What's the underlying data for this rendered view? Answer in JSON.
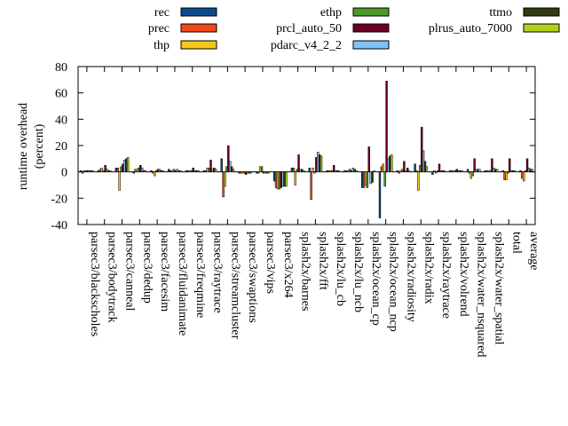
{
  "chart_data": {
    "type": "bar",
    "ylabel_lines": [
      "runtime overhead",
      "(percent)"
    ],
    "xlabel": "",
    "ylim": [
      -40,
      80
    ],
    "yticks": [
      -40,
      -20,
      0,
      20,
      40,
      60,
      80
    ],
    "grid": false,
    "legend_position": "top",
    "categories": [
      "parsec3/blackscholes",
      "parsec3/bodytrack",
      "parsec3/canneal",
      "parsec3/dedup",
      "parsec3/facesim",
      "parsec3/fluidanimate",
      "parsec3/freqmine",
      "parsec3/raytrace",
      "parsec3/streamcluster",
      "parsec3/swaptions",
      "parsec3/vips",
      "parsec3/x264",
      "splash2x/barnes",
      "splash2x/fft",
      "splash2x/lu_cb",
      "splash2x/lu_ncb",
      "splash2x/ocean_cp",
      "splash2x/ocean_ncp",
      "splash2x/radiosity",
      "splash2x/radix",
      "splash2x/raytrace",
      "splash2x/volrend",
      "splash2x/water_nsquared",
      "splash2x/water_spatial",
      "total",
      "average"
    ],
    "series": [
      {
        "name": "rec",
        "color": "#0b4a8b",
        "values": [
          1,
          1,
          3,
          -1,
          1,
          2,
          1,
          1,
          10,
          -1,
          -1,
          -7,
          3,
          3,
          1,
          1,
          -12,
          -35,
          1,
          6,
          -2,
          1,
          2,
          1,
          1,
          1
        ]
      },
      {
        "name": "prec",
        "color": "#f04a1a",
        "values": [
          -1,
          2,
          3,
          2,
          -1,
          1,
          1,
          1,
          -19,
          -1,
          -1,
          -12,
          3,
          -21,
          1,
          1,
          -12,
          4,
          -1,
          1,
          1,
          1,
          -1,
          1,
          -6,
          -5
        ]
      },
      {
        "name": "thp",
        "color": "#f4c71a",
        "values": [
          1,
          3,
          -14,
          2,
          -3,
          1,
          1,
          3,
          -11,
          -1,
          4,
          -13,
          -10,
          3,
          1,
          1,
          -10,
          6,
          1,
          -14,
          -1,
          1,
          -5,
          1,
          -6,
          -7
        ]
      },
      {
        "name": "ethp",
        "color": "#4d9a2a",
        "values": [
          1,
          1,
          4,
          3,
          1,
          2,
          1,
          3,
          4,
          -1,
          4,
          -13,
          2,
          -1,
          1,
          2,
          -12,
          -11,
          2,
          5,
          1,
          1,
          -3,
          1,
          -1,
          1
        ]
      },
      {
        "name": "prcl_auto_50",
        "color": "#6d0022",
        "values": [
          1,
          5,
          6,
          5,
          2,
          1,
          3,
          9,
          20,
          -2,
          -1,
          -12,
          13,
          11,
          5,
          1,
          19,
          69,
          8,
          34,
          6,
          2,
          10,
          10,
          10,
          10
        ]
      },
      {
        "name": "pdarc_v4_2_2",
        "color": "#7ec4f4",
        "values": [
          1,
          2,
          9,
          3,
          2,
          2,
          1,
          2,
          8,
          -1,
          -1,
          -11,
          2,
          15,
          1,
          3,
          -9,
          10,
          1,
          16,
          1,
          1,
          2,
          3,
          1,
          3
        ]
      },
      {
        "name": "ttmo",
        "color": "#2e3a10",
        "values": [
          1,
          1,
          10,
          1,
          1,
          1,
          1,
          3,
          4,
          -1,
          -1,
          -11,
          2,
          13,
          1,
          2,
          -8,
          12,
          3,
          8,
          1,
          1,
          2,
          2,
          1,
          2
        ]
      },
      {
        "name": "plrus_auto_7000",
        "color": "#b2d21a",
        "values": [
          1,
          1,
          11,
          1,
          1,
          1,
          1,
          2,
          2,
          -1,
          -1,
          -11,
          1,
          12,
          1,
          1,
          1,
          13,
          1,
          4,
          1,
          1,
          2,
          2,
          1,
          2
        ]
      }
    ]
  }
}
